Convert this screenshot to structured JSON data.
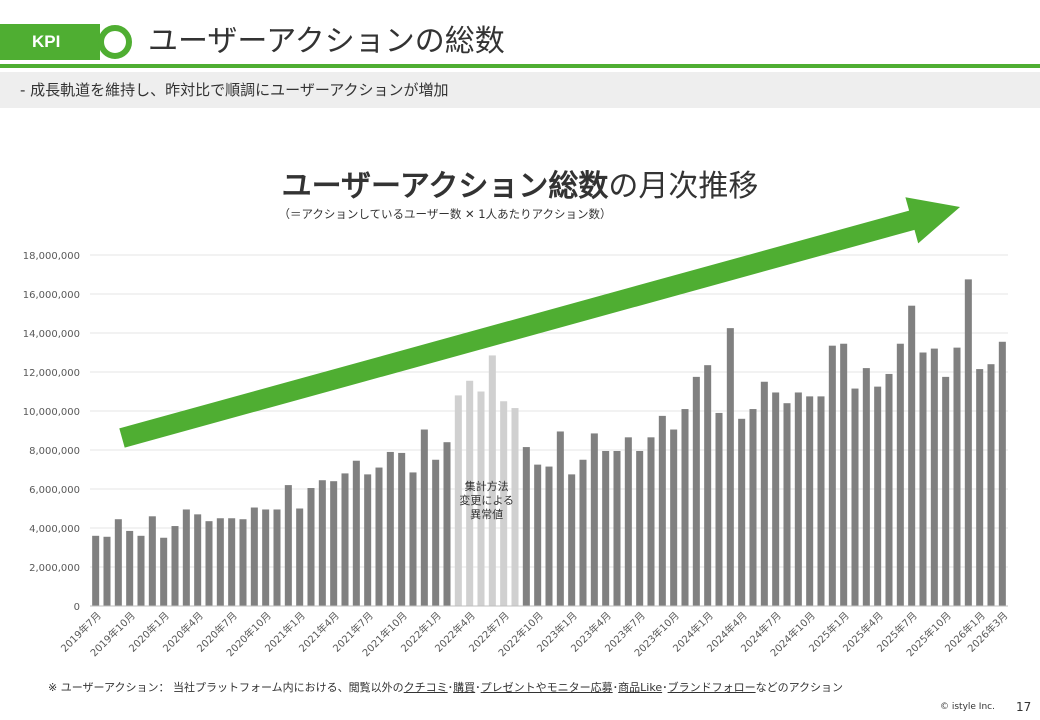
{
  "header": {
    "badge": "KPI",
    "title": "ユーザーアクションの総数",
    "subtitle": "-  成長軌道を維持し、昨対比で順調にユーザーアクションが増加"
  },
  "chart_data": {
    "type": "bar",
    "title_bold": "ユーザーアクション総数",
    "title_rest": "の月次推移",
    "subtitle": "（＝アクションしているユーザー数 ✕ 1人あたりアクション数）",
    "ylim": [
      0,
      18000000
    ],
    "yticks": [
      0,
      2000000,
      4000000,
      6000000,
      8000000,
      10000000,
      12000000,
      14000000,
      16000000,
      18000000
    ],
    "ytick_labels": [
      "0",
      "2,000,000",
      "4,000,000",
      "6,000,000",
      "8,000,000",
      "10,000,000",
      "12,000,000",
      "14,000,000",
      "16,000,000",
      "18,000,000"
    ],
    "grid": true,
    "categories": [
      "2019年7月",
      "2019年8月",
      "2019年9月",
      "2019年10月",
      "2019年11月",
      "2019年12月",
      "2020年1月",
      "2020年2月",
      "2020年3月",
      "2020年4月",
      "2020年5月",
      "2020年6月",
      "2020年7月",
      "2020年8月",
      "2020年9月",
      "2020年10月",
      "2020年11月",
      "2020年12月",
      "2021年1月",
      "2021年2月",
      "2021年3月",
      "2021年4月",
      "2021年5月",
      "2021年6月",
      "2021年7月",
      "2021年8月",
      "2021年9月",
      "2021年10月",
      "2021年11月",
      "2021年12月",
      "2022年1月",
      "2022年2月",
      "2022年3月",
      "2022年4月",
      "2022年5月",
      "2022年6月",
      "2022年7月",
      "2022年8月",
      "2022年9月",
      "2022年10月",
      "2022年11月",
      "2022年12月",
      "2023年1月",
      "2023年2月",
      "2023年3月",
      "2023年4月",
      "2023年5月",
      "2023年6月",
      "2023年7月",
      "2023年8月",
      "2023年9月",
      "2023年10月",
      "2023年11月",
      "2023年12月",
      "2024年1月",
      "2024年2月",
      "2024年3月",
      "2024年4月",
      "2024年5月",
      "2024年6月",
      "2024年7月",
      "2024年8月",
      "2024年9月",
      "2024年10月",
      "2024年11月",
      "2024年12月",
      "2025年1月",
      "2025年2月",
      "2025年3月",
      "2025年4月",
      "2025年5月",
      "2025年6月",
      "2025年7月",
      "2025年8月",
      "2025年9月",
      "2025年10月",
      "2025年11月",
      "2025年12月",
      "2026年1月",
      "2026年2月",
      "2026年3月"
    ],
    "xtick_labels": [
      "2019年7月",
      "2019年10月",
      "2020年1月",
      "2020年4月",
      "2020年7月",
      "2020年10月",
      "2021年1月",
      "2021年4月",
      "2021年7月",
      "2021年10月",
      "2022年1月",
      "2022年4月",
      "2022年7月",
      "2022年10月",
      "2023年1月",
      "2023年4月",
      "2023年7月",
      "2023年10月",
      "2024年1月",
      "2024年4月",
      "2024年7月",
      "2024年10月",
      "2025年1月",
      "2025年4月",
      "2025年7月",
      "2025年10月",
      "2026年1月",
      "2026年3月"
    ],
    "values": [
      3600000,
      3550000,
      4450000,
      3850000,
      3600000,
      4600000,
      3500000,
      4100000,
      4950000,
      4700000,
      4350000,
      4500000,
      4500000,
      4450000,
      5050000,
      4950000,
      4950000,
      6200000,
      5000000,
      6050000,
      6450000,
      6400000,
      6800000,
      7450000,
      6750000,
      7100000,
      7900000,
      7850000,
      6850000,
      9050000,
      7500000,
      8400000,
      10800000,
      11550000,
      11000000,
      12850000,
      10500000,
      10150000,
      8150000,
      7250000,
      7150000,
      8950000,
      6750000,
      7500000,
      8850000,
      7950000,
      7950000,
      8650000,
      7950000,
      8650000,
      9750000,
      9050000,
      10100000,
      11750000,
      12350000,
      9900000,
      14250000,
      9600000,
      10100000,
      11500000,
      10950000,
      10400000,
      10950000,
      10750000,
      10750000,
      13350000,
      13450000,
      11150000,
      12200000,
      11250000,
      11900000,
      13450000,
      15400000,
      13000000,
      13200000,
      11750000,
      13250000,
      16750000,
      12150000,
      12400000,
      13550000
    ],
    "anomaly_indices": [
      32,
      33,
      34,
      35,
      36,
      37
    ],
    "anomaly_label": [
      "集計方法",
      "変更による",
      "異常値"
    ],
    "colors": {
      "bar": "#808080",
      "anomaly": "#d0d0d0",
      "arrow": "#4fae32",
      "grid": "#e6e6e6"
    }
  },
  "footnote": {
    "prefix": "※  ユーザーアクション：  当社プラットフォーム内における、閲覧以外の",
    "kuchikomi": "クチコミ",
    "sep1": "･",
    "kobai": "購買",
    "sep2": "･",
    "present": "プレゼントやモニター応募",
    "sep3": "･",
    "like": "商品Like",
    "sep4": "･",
    "follow": "ブランドフォロー",
    "suffix": "などのアクション"
  },
  "copyright": "© istyle Inc.",
  "page_number": "17"
}
